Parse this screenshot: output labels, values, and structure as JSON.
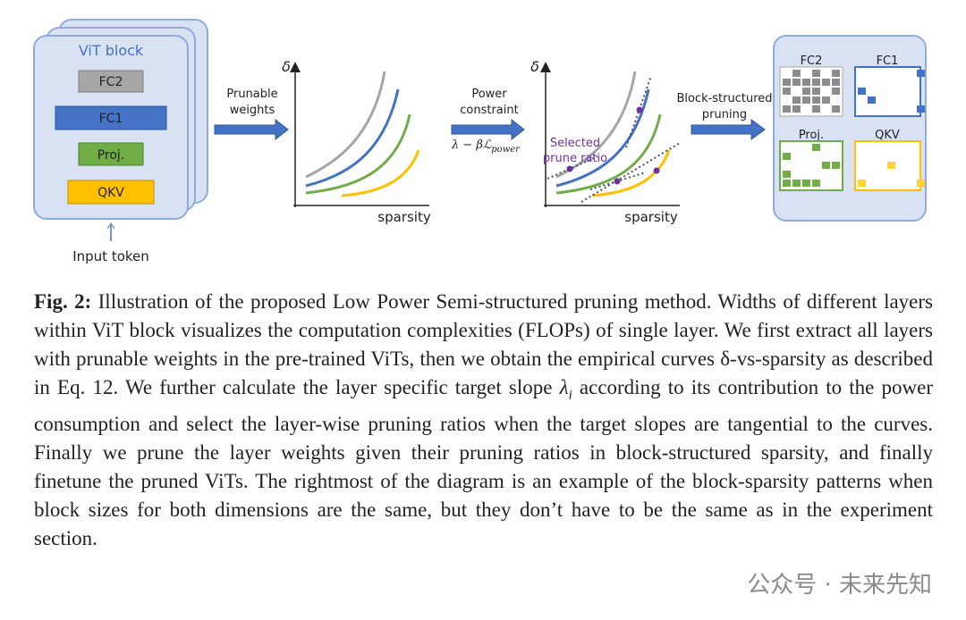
{
  "vit_block": {
    "title": "ViT block",
    "layers": [
      "FC2",
      "FC1",
      "Proj.",
      "QKV"
    ],
    "input": "Input token"
  },
  "step1": {
    "lines": [
      "Prunable",
      "weights"
    ]
  },
  "plot1": {
    "y_label": "δ",
    "x_label": "sparsity"
  },
  "step2": {
    "lines": [
      "Power",
      "constraint"
    ],
    "formula": "λ − βℒ",
    "formula_sub": "power"
  },
  "plot2": {
    "y_label": "δ",
    "x_label": "sparsity",
    "annotation": [
      "Selected",
      "prune ratio"
    ]
  },
  "step3": {
    "lines": [
      "Block-structured",
      "pruning"
    ]
  },
  "patterns": {
    "labels": [
      "FC2",
      "FC1",
      "Proj.",
      "QKV"
    ]
  },
  "caption": {
    "label": "Fig. 2:",
    "text_before": " Illustration of the proposed Low Power Semi-structured pruning method. Widths of different layers within ViT block visualizes the computation complexities (FLOPs) of single layer. We first extract all layers with prunable weights in the pre-trained ViTs, then we obtain the empirical curves δ-vs-sparsity as described in Eq. 12. We further calculate the layer specific target slope ",
    "symbol": "λ",
    "subscript": "i",
    "text_after": " according to its contribution to the power consumption and select the layer-wise pruning ratios when the target slopes are tangential to the curves. Finally we prune the layer weights given their pruning ratios in block-structured sparsity, and finally finetune the pruned ViTs. The rightmost of the diagram is an example of the block-sparsity patterns when block sizes for both dimensions are the same, but they don’t have to be the same as in the experiment section."
  },
  "watermark": "公众号 · 未来先知"
}
